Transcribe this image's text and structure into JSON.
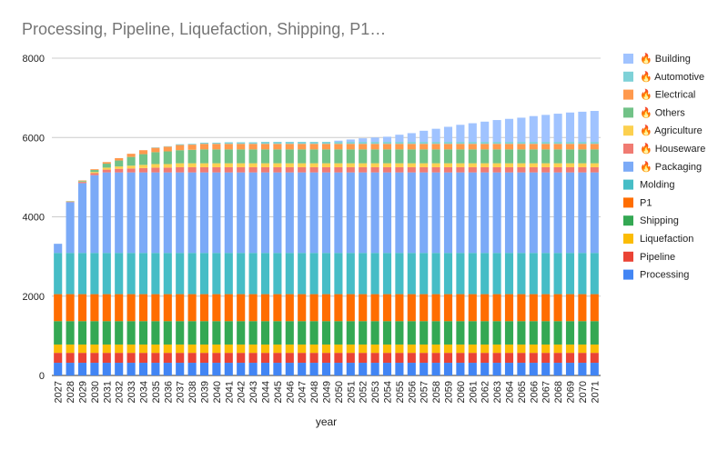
{
  "chart_data": {
    "type": "bar",
    "stacked": true,
    "title": "Processing, Pipeline, Liquefaction, Shipping, P1…",
    "xlabel": "year",
    "ylabel": "",
    "ylim": [
      0,
      8000
    ],
    "yticks": [
      0,
      2000,
      4000,
      6000,
      8000
    ],
    "grid": true,
    "legend_position": "right",
    "categories": [
      "2027",
      "2028",
      "2029",
      "2030",
      "2031",
      "2032",
      "2033",
      "2034",
      "2035",
      "2036",
      "2037",
      "2038",
      "2039",
      "2040",
      "2041",
      "2042",
      "2043",
      "2044",
      "2045",
      "2046",
      "2047",
      "2048",
      "2049",
      "2050",
      "2051",
      "2052",
      "2053",
      "2054",
      "2055",
      "2056",
      "2057",
      "2058",
      "2059",
      "2060",
      "2061",
      "2062",
      "2063",
      "2064",
      "2065",
      "2066",
      "2067",
      "2068",
      "2069",
      "2070",
      "2071"
    ],
    "series": [
      {
        "name": "Processing",
        "color": "#4285f4",
        "values": [
          320,
          320,
          320,
          320,
          320,
          320,
          320,
          320,
          320,
          320,
          320,
          320,
          320,
          320,
          320,
          320,
          320,
          320,
          320,
          320,
          320,
          320,
          320,
          320,
          320,
          320,
          320,
          320,
          320,
          320,
          320,
          320,
          320,
          320,
          320,
          320,
          320,
          320,
          320,
          320,
          320,
          320,
          320,
          320,
          320
        ]
      },
      {
        "name": "Pipeline",
        "color": "#ea4335",
        "values": [
          250,
          250,
          250,
          250,
          250,
          250,
          250,
          250,
          250,
          250,
          250,
          250,
          250,
          250,
          250,
          250,
          250,
          250,
          250,
          250,
          250,
          250,
          250,
          250,
          250,
          250,
          250,
          250,
          250,
          250,
          250,
          250,
          250,
          250,
          250,
          250,
          250,
          250,
          250,
          250,
          250,
          250,
          250,
          250,
          250
        ]
      },
      {
        "name": "Liquefaction",
        "color": "#fbbc04",
        "values": [
          210,
          210,
          210,
          210,
          210,
          210,
          210,
          210,
          210,
          210,
          210,
          210,
          210,
          210,
          210,
          210,
          210,
          210,
          210,
          210,
          210,
          210,
          210,
          210,
          210,
          210,
          210,
          210,
          210,
          210,
          210,
          210,
          210,
          210,
          210,
          210,
          210,
          210,
          210,
          210,
          210,
          210,
          210,
          210,
          210
        ]
      },
      {
        "name": "Shipping",
        "color": "#34a853",
        "values": [
          590,
          590,
          590,
          590,
          590,
          590,
          590,
          590,
          590,
          590,
          590,
          590,
          590,
          590,
          590,
          590,
          590,
          590,
          590,
          590,
          590,
          590,
          590,
          590,
          590,
          590,
          590,
          590,
          590,
          590,
          590,
          590,
          590,
          590,
          590,
          590,
          590,
          590,
          590,
          590,
          590,
          590,
          590,
          590,
          590
        ]
      },
      {
        "name": "P1",
        "color": "#ff6d01",
        "values": [
          680,
          680,
          680,
          680,
          680,
          680,
          680,
          680,
          680,
          680,
          680,
          680,
          680,
          680,
          680,
          680,
          680,
          680,
          680,
          680,
          680,
          680,
          680,
          680,
          680,
          680,
          680,
          680,
          680,
          680,
          680,
          680,
          680,
          680,
          680,
          680,
          680,
          680,
          680,
          680,
          680,
          680,
          680,
          680,
          680
        ]
      },
      {
        "name": "Molding",
        "color": "#46bdc6",
        "values": [
          1040,
          1040,
          1040,
          1040,
          1040,
          1040,
          1040,
          1040,
          1040,
          1040,
          1040,
          1040,
          1040,
          1040,
          1040,
          1040,
          1040,
          1040,
          1040,
          1040,
          1040,
          1040,
          1040,
          1040,
          1040,
          1040,
          1040,
          1040,
          1040,
          1040,
          1040,
          1040,
          1040,
          1040,
          1040,
          1040,
          1040,
          1040,
          1040,
          1040,
          1040,
          1040,
          1040,
          1040,
          1040
        ]
      },
      {
        "name": "🔥 Packaging",
        "color": "#7baaf7",
        "values": [
          230,
          1280,
          1760,
          1960,
          2030,
          2030,
          2030,
          2030,
          2030,
          2030,
          2030,
          2030,
          2030,
          2030,
          2030,
          2030,
          2030,
          2030,
          2030,
          2030,
          2030,
          2030,
          2030,
          2030,
          2030,
          2030,
          2030,
          2030,
          2030,
          2030,
          2030,
          2030,
          2030,
          2030,
          2030,
          2030,
          2030,
          2030,
          2030,
          2030,
          2030,
          2030,
          2030,
          2030,
          2030
        ]
      },
      {
        "name": "🔥 Houseware",
        "color": "#f07b72",
        "values": [
          0,
          10,
          30,
          50,
          70,
          90,
          100,
          110,
          120,
          120,
          130,
          130,
          130,
          130,
          130,
          130,
          130,
          130,
          130,
          130,
          130,
          130,
          130,
          130,
          130,
          130,
          130,
          130,
          130,
          130,
          130,
          130,
          130,
          130,
          130,
          130,
          130,
          130,
          130,
          130,
          130,
          130,
          130,
          130,
          130
        ]
      },
      {
        "name": "🔥 Agriculture",
        "color": "#fcd04f",
        "values": [
          0,
          5,
          10,
          30,
          50,
          60,
          70,
          80,
          90,
          90,
          100,
          100,
          100,
          100,
          100,
          100,
          100,
          100,
          100,
          100,
          100,
          100,
          100,
          100,
          100,
          100,
          100,
          100,
          100,
          100,
          100,
          100,
          100,
          100,
          100,
          100,
          100,
          100,
          100,
          100,
          100,
          100,
          100,
          100,
          100
        ]
      },
      {
        "name": "🔥 Others",
        "color": "#71c287",
        "values": [
          0,
          10,
          20,
          50,
          100,
          150,
          220,
          270,
          300,
          320,
          330,
          340,
          350,
          350,
          350,
          350,
          350,
          350,
          350,
          350,
          350,
          350,
          350,
          350,
          350,
          350,
          350,
          350,
          350,
          350,
          350,
          350,
          350,
          350,
          350,
          350,
          350,
          350,
          350,
          350,
          350,
          350,
          350,
          350,
          350
        ]
      },
      {
        "name": "🔥 Electrical",
        "color": "#ff994d",
        "values": [
          0,
          5,
          10,
          20,
          40,
          60,
          80,
          100,
          110,
          120,
          130,
          130,
          140,
          140,
          140,
          140,
          140,
          140,
          140,
          140,
          140,
          140,
          140,
          140,
          140,
          140,
          140,
          140,
          140,
          140,
          140,
          140,
          140,
          140,
          140,
          140,
          140,
          140,
          140,
          140,
          140,
          140,
          140,
          140,
          140
        ]
      },
      {
        "name": "🔥 Automotive",
        "color": "#7ed1d7",
        "values": [
          0,
          0,
          0,
          0,
          0,
          0,
          0,
          0,
          10,
          10,
          20,
          20,
          30,
          30,
          40,
          40,
          40,
          50,
          50,
          50,
          50,
          50,
          50,
          50,
          50,
          50,
          50,
          50,
          50,
          50,
          50,
          50,
          50,
          50,
          50,
          50,
          50,
          50,
          50,
          50,
          50,
          50,
          50,
          50,
          50
        ]
      },
      {
        "name": "🔥 Building",
        "color": "#a0c3ff",
        "values": [
          0,
          0,
          0,
          0,
          0,
          0,
          0,
          0,
          0,
          0,
          0,
          0,
          0,
          0,
          0,
          0,
          0,
          0,
          0,
          0,
          0,
          0,
          0,
          30,
          60,
          90,
          110,
          130,
          180,
          220,
          280,
          330,
          380,
          430,
          470,
          510,
          550,
          580,
          610,
          650,
          680,
          710,
          740,
          760,
          780
        ]
      }
    ],
    "legend_order": [
      "🔥 Building",
      "🔥 Automotive",
      "🔥 Electrical",
      "🔥 Others",
      "🔥 Agriculture",
      "🔥 Houseware",
      "🔥 Packaging",
      "Molding",
      "P1",
      "Shipping",
      "Liquefaction",
      "Pipeline",
      "Processing"
    ]
  }
}
